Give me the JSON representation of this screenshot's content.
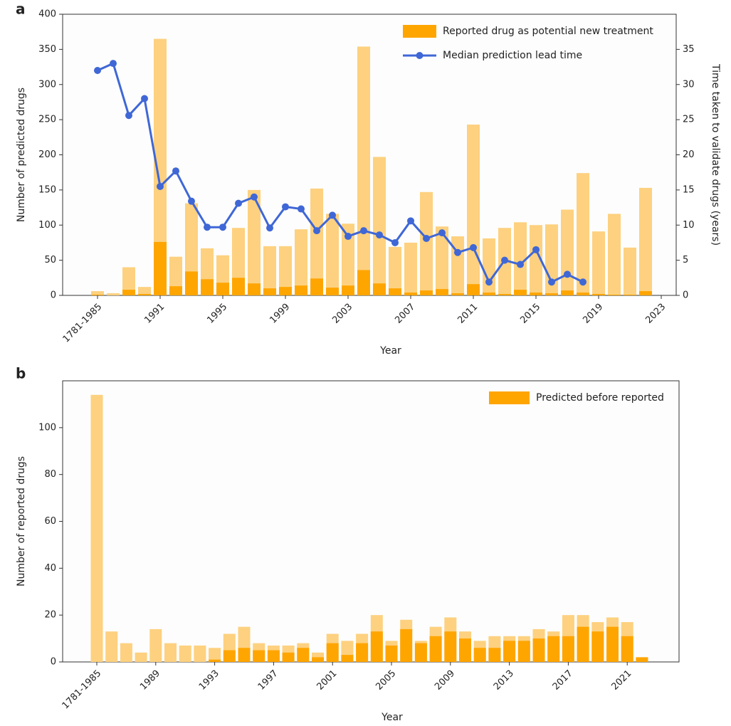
{
  "chart_data": [
    {
      "type": "bar",
      "panel_label": "a",
      "xlabel": "Year",
      "ylabel": "Number of predicted drugs",
      "y2label": "Time taken to validate drugs (years)",
      "categories": [
        "1781-1985",
        null,
        null,
        null,
        "1991",
        null,
        null,
        null,
        "1995",
        null,
        null,
        null,
        "1999",
        null,
        null,
        null,
        "2003",
        null,
        null,
        null,
        "2007",
        null,
        null,
        null,
        "2011",
        null,
        null,
        null,
        "2015",
        null,
        null,
        null,
        "2019",
        null,
        null,
        null,
        "2023"
      ],
      "series": [
        {
          "color": "#fdd17f",
          "values": [
            6,
            3,
            40,
            12,
            365,
            55,
            131,
            67,
            57,
            96,
            150,
            70,
            70,
            94,
            152,
            116,
            102,
            354,
            197,
            69,
            75,
            147,
            98,
            84,
            243,
            81,
            96,
            104,
            100,
            101,
            122,
            174,
            91,
            116,
            68,
            153,
            null
          ]
        },
        {
          "name": "Reported drug as potential new treatment",
          "color": "#ffa500",
          "values": [
            1,
            0,
            8,
            2,
            76,
            13,
            34,
            23,
            18,
            25,
            17,
            10,
            12,
            14,
            24,
            11,
            14,
            36,
            17,
            10,
            4,
            7,
            9,
            3,
            16,
            4,
            2,
            8,
            4,
            3,
            7,
            4,
            2,
            1,
            1,
            6,
            null
          ]
        },
        {
          "name": "Median prediction lead time",
          "color": "#3f67d6",
          "type": "line",
          "axis": "y2",
          "values": [
            32,
            33,
            25.6,
            28,
            15.5,
            17.7,
            13.4,
            9.7,
            9.7,
            13.1,
            14,
            9.6,
            12.6,
            12.3,
            9.2,
            11.4,
            8.4,
            9.2,
            8.6,
            7.5,
            10.6,
            8.1,
            8.9,
            6.1,
            6.8,
            1.9,
            5,
            4.4,
            6.5,
            1.9,
            3,
            1.9,
            null,
            null,
            null,
            null,
            null
          ]
        }
      ],
      "ylim": [
        0,
        400
      ],
      "yticks": [
        0,
        50,
        100,
        150,
        200,
        250,
        300,
        350,
        400
      ],
      "y2lim": [
        0,
        40
      ],
      "y2ticks": [
        0,
        5,
        10,
        15,
        20,
        25,
        30,
        35
      ],
      "legend": "upper right"
    },
    {
      "type": "bar",
      "panel_label": "b",
      "xlabel": "Year",
      "ylabel": "Number of reported drugs",
      "categories": [
        "1781-1985",
        null,
        null,
        null,
        "1989",
        null,
        null,
        null,
        "1993",
        null,
        null,
        null,
        "1997",
        null,
        null,
        null,
        "2001",
        null,
        null,
        null,
        "2005",
        null,
        null,
        null,
        "2009",
        null,
        null,
        null,
        "2013",
        null,
        null,
        null,
        "2017",
        null,
        null,
        null,
        "2021",
        null
      ],
      "series": [
        {
          "color": "#fdd17f",
          "values": [
            114,
            13,
            8,
            4,
            14,
            8,
            7,
            7,
            6,
            12,
            15,
            8,
            7,
            7,
            8,
            4,
            12,
            9,
            12,
            20,
            9,
            18,
            9,
            15,
            19,
            13,
            9,
            11,
            11,
            11,
            14,
            13,
            20,
            20,
            17,
            19,
            17,
            2
          ]
        },
        {
          "name": "Predicted before reported",
          "color": "#ffa500",
          "values": [
            0,
            0,
            0,
            0,
            0,
            0,
            0,
            0,
            1,
            5,
            6,
            5,
            5,
            4,
            6,
            2,
            8,
            3,
            8,
            13,
            7,
            14,
            8,
            11,
            13,
            10,
            6,
            6,
            9,
            9,
            10,
            11,
            11,
            15,
            13,
            15,
            11,
            2
          ]
        }
      ],
      "ylim": [
        0,
        120
      ],
      "yticks": [
        0,
        20,
        40,
        60,
        80,
        100
      ],
      "legend": "upper right"
    }
  ]
}
